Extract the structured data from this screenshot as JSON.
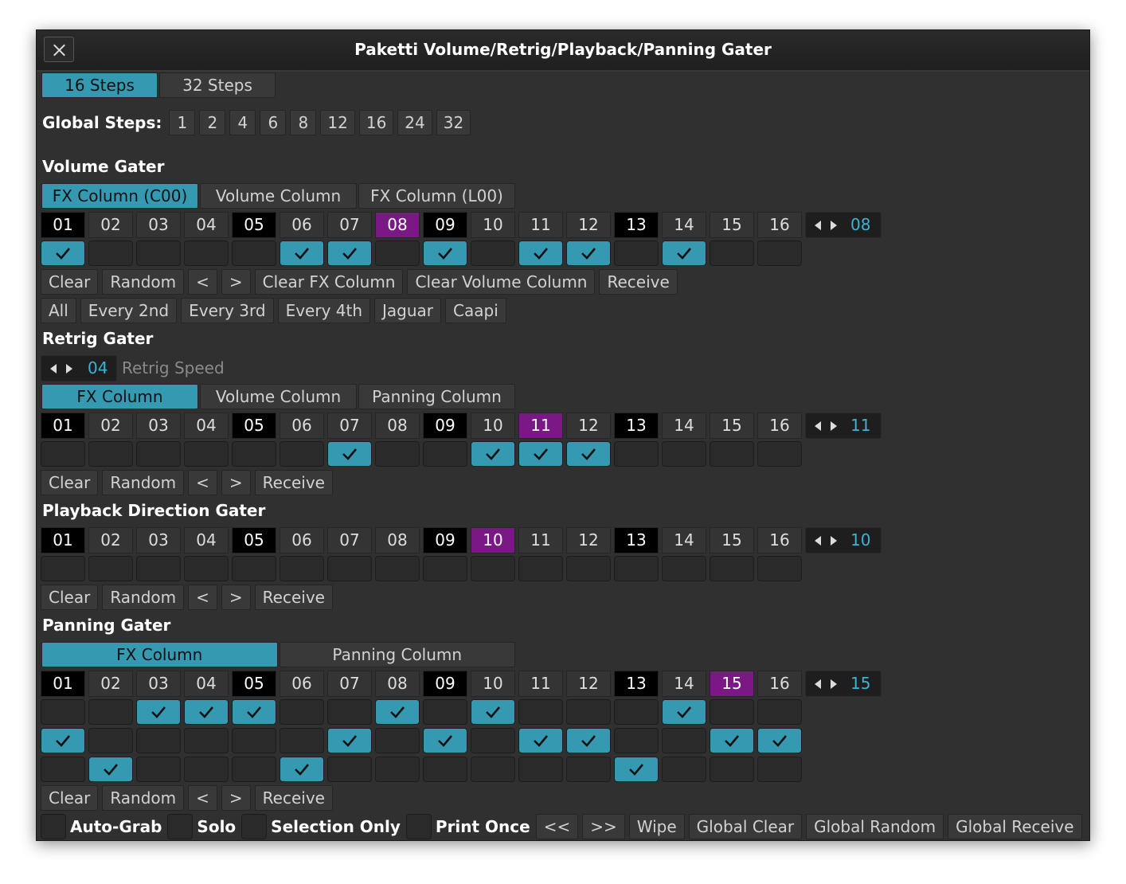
{
  "window": {
    "title": "Paketti Volume/Retrig/Playback/Panning Gater"
  },
  "step_modes": {
    "options": [
      "16 Steps",
      "32 Steps"
    ],
    "selected": 0
  },
  "global_steps": {
    "label": "Global Steps:",
    "options": [
      "1",
      "2",
      "4",
      "6",
      "8",
      "12",
      "16",
      "24",
      "32"
    ]
  },
  "steps": [
    "01",
    "02",
    "03",
    "04",
    "05",
    "06",
    "07",
    "08",
    "09",
    "10",
    "11",
    "12",
    "13",
    "14",
    "15",
    "16"
  ],
  "gaters": [
    {
      "title": "Volume Gater",
      "tabs": [
        "FX Column (C00)",
        "Volume Column",
        "FX Column (L00)"
      ],
      "selected_tab": 0,
      "position": "08",
      "rows": [
        [
          true,
          false,
          false,
          false,
          false,
          true,
          true,
          false,
          true,
          false,
          true,
          true,
          false,
          true,
          false,
          false
        ]
      ],
      "buttons": [
        "Clear",
        "Random",
        "<",
        ">",
        "Clear FX Column",
        "Clear Volume Column",
        "Receive"
      ],
      "patterns": [
        "All",
        "Every 2nd",
        "Every 3rd",
        "Every 4th",
        "Jaguar",
        "Caapi"
      ]
    },
    {
      "title": "Retrig Gater",
      "speed": {
        "value": "04",
        "label": "Retrig Speed"
      },
      "tabs": [
        "FX Column",
        "Volume Column",
        "Panning Column"
      ],
      "selected_tab": 0,
      "position": "11",
      "rows": [
        [
          false,
          false,
          false,
          false,
          false,
          false,
          true,
          false,
          false,
          true,
          true,
          true,
          false,
          false,
          false,
          false
        ]
      ],
      "buttons": [
        "Clear",
        "Random",
        "<",
        ">",
        "Receive"
      ]
    },
    {
      "title": "Playback Direction Gater",
      "position": "10",
      "rows": [
        [
          false,
          false,
          false,
          false,
          false,
          false,
          false,
          false,
          false,
          false,
          false,
          false,
          false,
          false,
          false,
          false
        ]
      ],
      "buttons": [
        "Clear",
        "Random",
        "<",
        ">",
        "Receive"
      ]
    },
    {
      "title": "Panning Gater",
      "tabs": [
        "FX Column",
        "Panning Column"
      ],
      "selected_tab": 0,
      "position": "15",
      "rows": [
        [
          false,
          false,
          true,
          true,
          true,
          false,
          false,
          true,
          false,
          true,
          false,
          false,
          false,
          true,
          false,
          false
        ],
        [
          true,
          false,
          false,
          false,
          false,
          false,
          true,
          false,
          true,
          false,
          true,
          true,
          false,
          false,
          true,
          true
        ],
        [
          false,
          true,
          false,
          false,
          false,
          true,
          false,
          false,
          false,
          false,
          false,
          false,
          true,
          false,
          false,
          false
        ]
      ],
      "buttons": [
        "Clear",
        "Random",
        "<",
        ">",
        "Receive"
      ]
    }
  ],
  "footer": {
    "toggles": [
      {
        "label": "Auto-Grab",
        "checked": false
      },
      {
        "label": "Solo",
        "checked": false
      },
      {
        "label": "Selection Only",
        "checked": false
      },
      {
        "label": "Print Once",
        "checked": false
      }
    ],
    "buttons": [
      "<<",
      ">>",
      "Wipe",
      "Global Clear",
      "Global Random",
      "Global Receive"
    ]
  }
}
